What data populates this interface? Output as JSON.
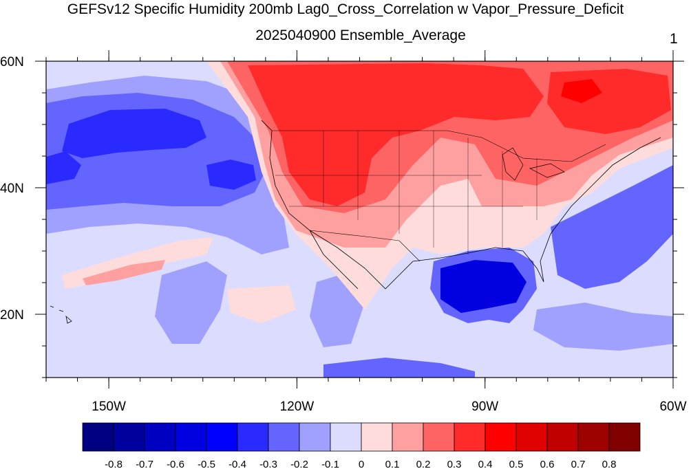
{
  "title": "GEFSv12 Specific Humidity 200mb Lag0_Cross_Correlation w Vapor_Pressure_Deficit",
  "subtitle": "2025040900 Ensemble_Average",
  "right_label": "1",
  "map": {
    "lon_range": [
      -160,
      -60
    ],
    "lat_range": [
      10,
      60
    ],
    "lon_ticks": [
      {
        "value": -150,
        "label": "150W"
      },
      {
        "value": -120,
        "label": "120W"
      },
      {
        "value": -90,
        "label": "90W"
      },
      {
        "value": -60,
        "label": "60W"
      }
    ],
    "lat_ticks": [
      {
        "value": 60,
        "label": "60N"
      },
      {
        "value": 40,
        "label": "40N"
      },
      {
        "value": 20,
        "label": "20N"
      }
    ]
  },
  "colorbar": {
    "labels": [
      "-0.8",
      "-0.7",
      "-0.6",
      "-0.5",
      "-0.4",
      "-0.3",
      "-0.2",
      "-0.1",
      "0",
      "0.1",
      "0.2",
      "0.3",
      "0.4",
      "0.5",
      "0.6",
      "0.7",
      "0.8"
    ],
    "colors": [
      "#000080",
      "#00009f",
      "#0000c0",
      "#0000e0",
      "#0000ff",
      "#2a2aff",
      "#6464ff",
      "#a0a0ff",
      "#dcdcff",
      "#ffdcdc",
      "#ffa0a0",
      "#ff6464",
      "#ff2a2a",
      "#ff0000",
      "#e00000",
      "#c00000",
      "#9f0000",
      "#800000"
    ]
  }
}
